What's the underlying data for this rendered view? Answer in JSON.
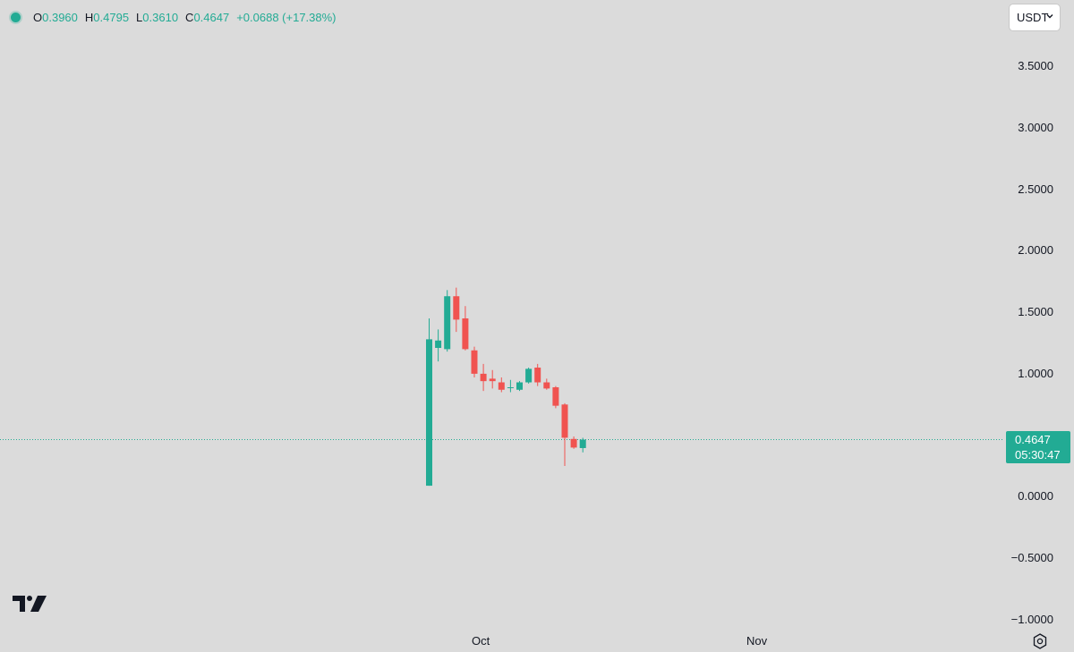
{
  "legend": {
    "open_key": "O",
    "open": "0.3960",
    "high_key": "H",
    "high": "0.4795",
    "low_key": "L",
    "low": "0.3610",
    "close_key": "C",
    "close": "0.4647",
    "change": "+0.0688 (+17.38%)"
  },
  "currency": {
    "selected": "USDT"
  },
  "price_tag": {
    "price": "0.4647",
    "countdown": "05:30:47"
  },
  "colors": {
    "up": "#22ab94",
    "down": "#f05350",
    "background": "#dbdbdb",
    "text": "#131722"
  },
  "icons": {
    "logo": "tradingview-logo-icon",
    "settings": "settings-gear-icon",
    "dropdown": "chevron-down-icon"
  },
  "chart_data": {
    "type": "candlestick",
    "y_ticks": [
      "3.5000",
      "3.0000",
      "2.5000",
      "2.0000",
      "1.5000",
      "1.0000",
      "0.0000",
      "−0.5000",
      "−1.0000"
    ],
    "y_tick_values": [
      3.5,
      3.0,
      2.5,
      2.0,
      1.5,
      1.0,
      0.0,
      -0.5,
      -1.0
    ],
    "ylim": [
      -1.0,
      3.5
    ],
    "x_ticks": [
      "Oct",
      "Nov"
    ],
    "current_price": 0.4647,
    "candles": [
      {
        "o": 0.09,
        "h": 1.45,
        "l": 0.09,
        "c": 1.28
      },
      {
        "o": 1.21,
        "h": 1.36,
        "l": 1.1,
        "c": 1.27
      },
      {
        "o": 1.2,
        "h": 1.68,
        "l": 1.18,
        "c": 1.63
      },
      {
        "o": 1.63,
        "h": 1.7,
        "l": 1.34,
        "c": 1.44
      },
      {
        "o": 1.45,
        "h": 1.55,
        "l": 1.19,
        "c": 1.2
      },
      {
        "o": 1.19,
        "h": 1.22,
        "l": 0.97,
        "c": 1.0
      },
      {
        "o": 1.0,
        "h": 1.08,
        "l": 0.86,
        "c": 0.94
      },
      {
        "o": 0.96,
        "h": 1.03,
        "l": 0.88,
        "c": 0.94
      },
      {
        "o": 0.93,
        "h": 0.97,
        "l": 0.85,
        "c": 0.87
      },
      {
        "o": 0.89,
        "h": 0.95,
        "l": 0.85,
        "c": 0.89
      },
      {
        "o": 0.87,
        "h": 0.94,
        "l": 0.86,
        "c": 0.93
      },
      {
        "o": 0.93,
        "h": 1.05,
        "l": 0.92,
        "c": 1.04
      },
      {
        "o": 1.05,
        "h": 1.08,
        "l": 0.9,
        "c": 0.93
      },
      {
        "o": 0.93,
        "h": 0.96,
        "l": 0.87,
        "c": 0.88
      },
      {
        "o": 0.89,
        "h": 0.9,
        "l": 0.72,
        "c": 0.74
      },
      {
        "o": 0.75,
        "h": 0.76,
        "l": 0.25,
        "c": 0.48
      },
      {
        "o": 0.47,
        "h": 0.49,
        "l": 0.39,
        "c": 0.4
      },
      {
        "o": 0.396,
        "h": 0.4795,
        "l": 0.361,
        "c": 0.4647
      }
    ]
  }
}
